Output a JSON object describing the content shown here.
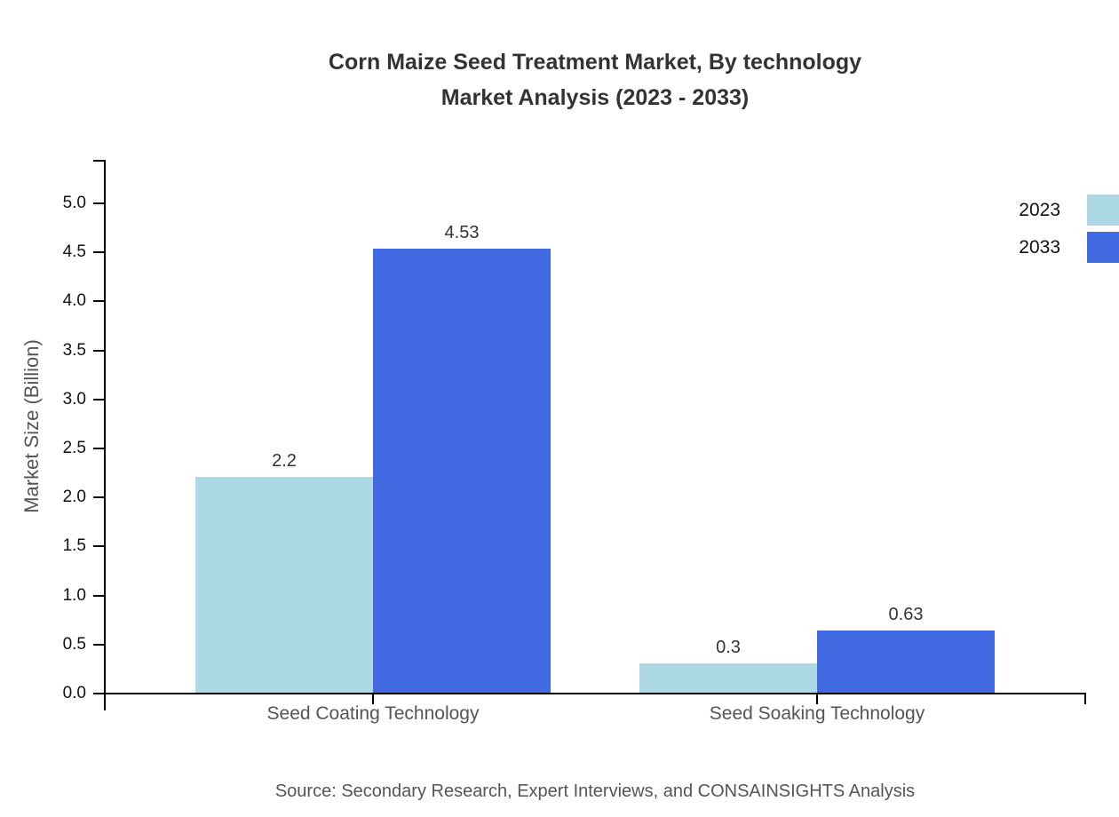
{
  "title": "Corn Maize Seed Treatment Market, By technology\nMarket Analysis (2023 - 2033)",
  "source": "Source: Secondary Research, Expert Interviews, and CONSAINSIGHTS Analysis",
  "chart_data": {
    "type": "bar",
    "categories": [
      "Seed Coating Technology",
      "Seed Soaking Technology"
    ],
    "series": [
      {
        "name": "2023",
        "color": "#ADD8E6",
        "values": [
          2.2,
          0.3
        ]
      },
      {
        "name": "2033",
        "color": "#4169E1",
        "values": [
          4.53,
          0.63
        ]
      }
    ],
    "title": "Corn Maize Seed Treatment Market, By technology Market Analysis (2023 - 2033)",
    "xlabel": "",
    "ylabel": "Market Size (Billion)",
    "ylim": [
      0,
      5.0
    ],
    "ytick_step": 0.5,
    "yticks": [
      "0.0",
      "0.5",
      "1.0",
      "1.5",
      "2.0",
      "2.5",
      "3.0",
      "3.5",
      "4.0",
      "4.5",
      "5.0"
    ],
    "grid": false,
    "legend_position": "top-right",
    "value_labels_shown": true
  },
  "colors": {
    "series_2023": "#ADD8E6",
    "series_2033": "#4169E1",
    "axis": "#000000",
    "title_text": "#333333",
    "tick_text": "#111111",
    "muted_text": "#555555"
  }
}
